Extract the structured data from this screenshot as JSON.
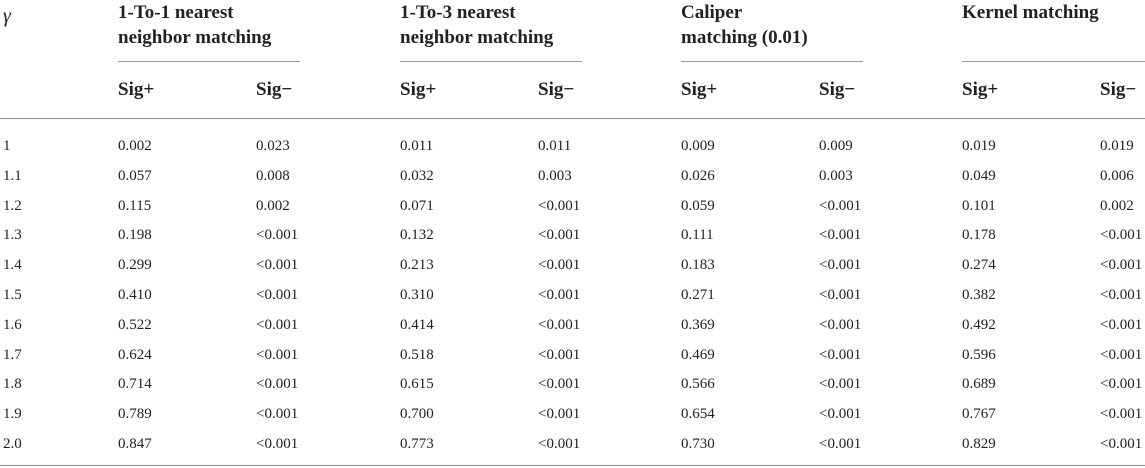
{
  "table": {
    "gamma_header": "γ",
    "groups": [
      {
        "line1": "1-To-1 nearest",
        "line2": "neighbor matching"
      },
      {
        "line1": "1-To-3 nearest",
        "line2": "neighbor matching"
      },
      {
        "line1": "Caliper",
        "line2": "matching (0.01)"
      },
      {
        "line1": "Kernel matching",
        "line2": ""
      }
    ],
    "sub_headers": [
      "Sig+",
      "Sig−",
      "Sig+",
      "Sig−",
      "Sig+",
      "Sig−",
      "Sig+",
      "Sig−"
    ],
    "rows": [
      {
        "gamma": "1",
        "values": [
          "0.002",
          "0.023",
          "0.011",
          "0.011",
          "0.009",
          "0.009",
          "0.019",
          "0.019"
        ]
      },
      {
        "gamma": "1.1",
        "values": [
          "0.057",
          "0.008",
          "0.032",
          "0.003",
          "0.026",
          "0.003",
          "0.049",
          "0.006"
        ]
      },
      {
        "gamma": "1.2",
        "values": [
          "0.115",
          "0.002",
          "0.071",
          "<0.001",
          "0.059",
          "<0.001",
          "0.101",
          "0.002"
        ]
      },
      {
        "gamma": "1.3",
        "values": [
          "0.198",
          "<0.001",
          "0.132",
          "<0.001",
          "0.111",
          "<0.001",
          "0.178",
          "<0.001"
        ]
      },
      {
        "gamma": "1.4",
        "values": [
          "0.299",
          "<0.001",
          "0.213",
          "<0.001",
          "0.183",
          "<0.001",
          "0.274",
          "<0.001"
        ]
      },
      {
        "gamma": "1.5",
        "values": [
          "0.410",
          "<0.001",
          "0.310",
          "<0.001",
          "0.271",
          "<0.001",
          "0.382",
          "<0.001"
        ]
      },
      {
        "gamma": "1.6",
        "values": [
          "0.522",
          "<0.001",
          "0.414",
          "<0.001",
          "0.369",
          "<0.001",
          "0.492",
          "<0.001"
        ]
      },
      {
        "gamma": "1.7",
        "values": [
          "0.624",
          "<0.001",
          "0.518",
          "<0.001",
          "0.469",
          "<0.001",
          "0.596",
          "<0.001"
        ]
      },
      {
        "gamma": "1.8",
        "values": [
          "0.714",
          "<0.001",
          "0.615",
          "<0.001",
          "0.566",
          "<0.001",
          "0.689",
          "<0.001"
        ]
      },
      {
        "gamma": "1.9",
        "values": [
          "0.789",
          "<0.001",
          "0.700",
          "<0.001",
          "0.654",
          "<0.001",
          "0.767",
          "<0.001"
        ]
      },
      {
        "gamma": "2.0",
        "values": [
          "0.847",
          "<0.001",
          "0.773",
          "<0.001",
          "0.730",
          "<0.001",
          "0.829",
          "<0.001"
        ]
      }
    ]
  }
}
